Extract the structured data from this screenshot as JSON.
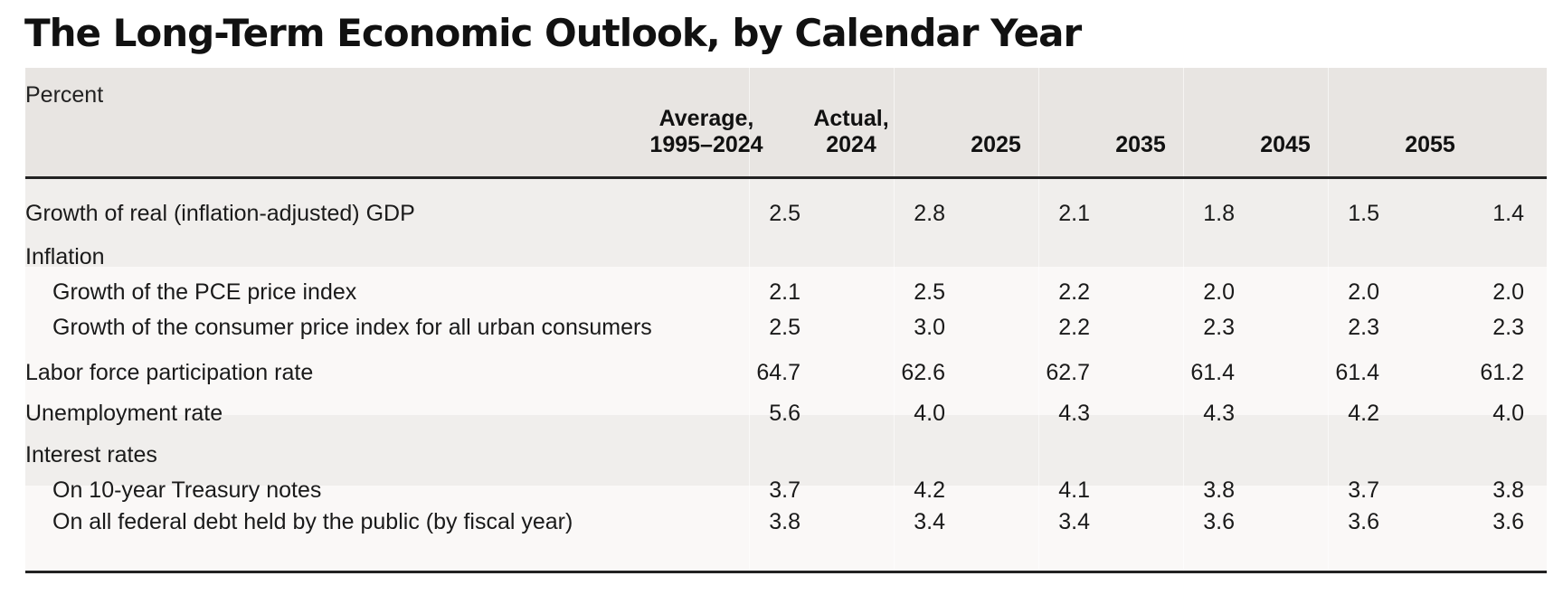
{
  "title": "The Long-Term Economic Outlook, by Calendar Year",
  "table": {
    "unit_label": "Percent",
    "columns": [
      {
        "line1": "Average,",
        "line2": "1995–2024"
      },
      {
        "line1": "Actual,",
        "line2": "2024"
      },
      {
        "line1": "",
        "line2": "2025"
      },
      {
        "line1": "",
        "line2": "2035"
      },
      {
        "line1": "",
        "line2": "2045"
      },
      {
        "line1": "",
        "line2": "2055"
      }
    ],
    "rows": {
      "gdp": {
        "label": "Growth of real (inflation-adjusted) GDP",
        "values": [
          "2.5",
          "2.8",
          "2.1",
          "1.8",
          "1.5",
          "1.4"
        ]
      },
      "inflation_heading": {
        "label": "Inflation"
      },
      "pce": {
        "label": "Growth of the PCE price index",
        "values": [
          "2.1",
          "2.5",
          "2.2",
          "2.0",
          "2.0",
          "2.0"
        ]
      },
      "cpi": {
        "label": "Growth of the consumer price index for all urban consumers",
        "values": [
          "2.5",
          "3.0",
          "2.2",
          "2.3",
          "2.3",
          "2.3"
        ]
      },
      "labor": {
        "label": "Labor force participation rate",
        "values": [
          "64.7",
          "62.6",
          "62.7",
          "61.4",
          "61.4",
          "61.2"
        ]
      },
      "unemployment": {
        "label": "Unemployment rate",
        "values": [
          "5.6",
          "4.0",
          "4.3",
          "4.3",
          "4.2",
          "4.0"
        ]
      },
      "interest_heading": {
        "label": "Interest rates"
      },
      "treasury": {
        "label": "On 10-year Treasury notes",
        "values": [
          "3.7",
          "4.2",
          "4.1",
          "3.8",
          "3.7",
          "3.8"
        ]
      },
      "federal_debt": {
        "label": "On all federal debt held by the public (by fiscal year)",
        "values": [
          "3.8",
          "3.4",
          "3.4",
          "3.6",
          "3.6",
          "3.6"
        ]
      }
    }
  }
}
